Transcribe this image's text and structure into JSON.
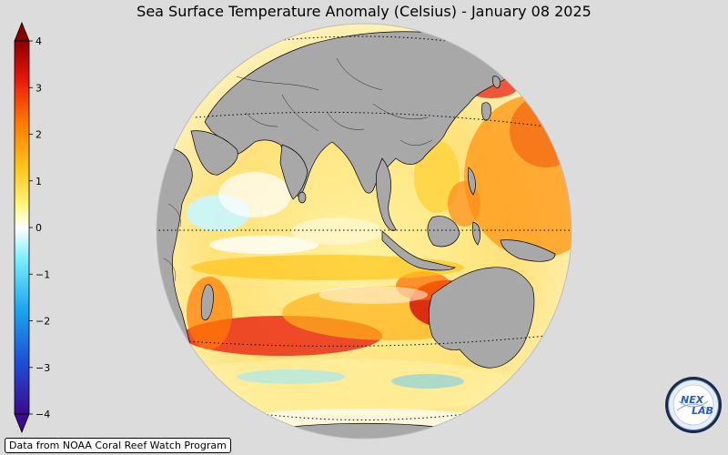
{
  "title": "Sea Surface Temperature Anomaly (Celsius) - January 08 2025",
  "colorbar": {
    "ticks": [
      "4",
      "3",
      "2",
      "1",
      "0",
      "−1",
      "−2",
      "−3",
      "−4"
    ],
    "colors": [
      "#3a0a8f",
      "#1f4fd8",
      "#19a6f0",
      "#7ff0ff",
      "#ffffff",
      "#fff67a",
      "#ffc51a",
      "#ff7a00",
      "#e8150a",
      "#8a0000"
    ]
  },
  "map": {
    "projection": "orthographic",
    "ocean_color": "#fdf0b8",
    "land_color": "#a8a8a8",
    "background": "#dcdcdc"
  },
  "credit": "Data from NOAA Coral Reef Watch Program",
  "logo": {
    "text_top": "NEX",
    "text_bottom": "LAB"
  }
}
